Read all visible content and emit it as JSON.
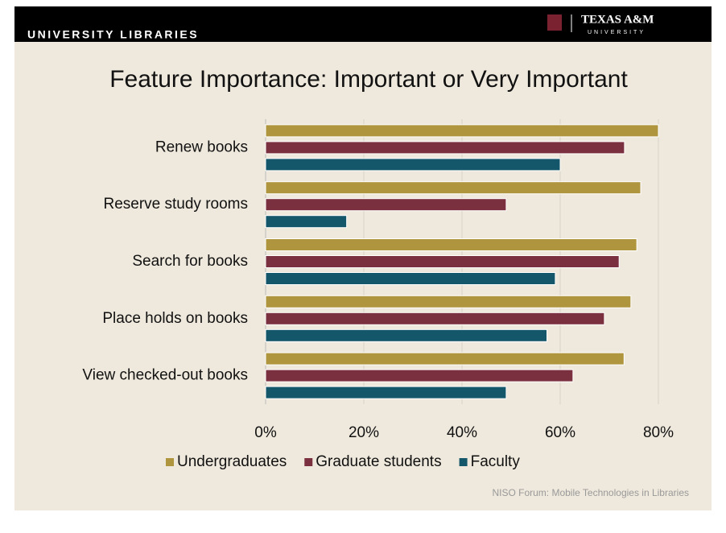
{
  "header": {
    "left": "UNIVERSITY LIBRARIES",
    "logo": "TEXAS A&M",
    "logo_sub": "UNIVERSITY"
  },
  "footer": "NISO Forum:  Mobile Technologies in Libraries",
  "chart_data": {
    "type": "bar",
    "orientation": "horizontal",
    "title": "Feature Importance: Important or Very Important",
    "categories": [
      "Renew books",
      "Reserve study rooms",
      "Search for books",
      "Place holds on books",
      "View checked-out books"
    ],
    "series": [
      {
        "name": "Undergraduates",
        "color": "#b0953f",
        "values": [
          80,
          76.4,
          75.6,
          74.4,
          73
        ]
      },
      {
        "name": "Graduate students",
        "color": "#7b3040",
        "values": [
          73.1,
          49,
          72,
          69,
          62.6
        ]
      },
      {
        "name": "Faculty",
        "color": "#15576a",
        "values": [
          60,
          16.5,
          59,
          57.3,
          49
        ]
      }
    ],
    "xlim": [
      0,
      80
    ],
    "xticks": [
      {
        "value": 0,
        "label": "0%"
      },
      {
        "value": 20,
        "label": "20%"
      },
      {
        "value": 40,
        "label": "40%"
      },
      {
        "value": 60,
        "label": "60%"
      },
      {
        "value": 80,
        "label": "80%"
      }
    ],
    "grid": true,
    "legend": "bottom"
  }
}
